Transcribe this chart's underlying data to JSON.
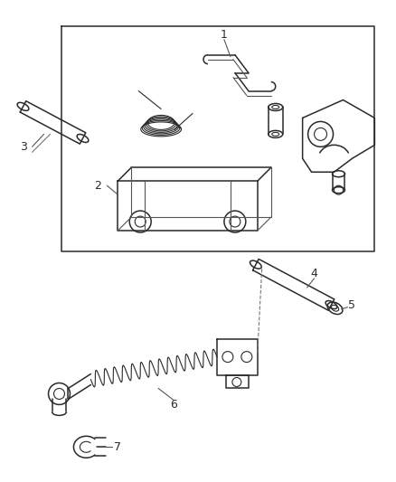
{
  "bg_color": "#ffffff",
  "line_color": "#2a2a2a",
  "label_color": "#2a2a2a",
  "fig_width": 4.39,
  "fig_height": 5.33,
  "dpi": 100
}
